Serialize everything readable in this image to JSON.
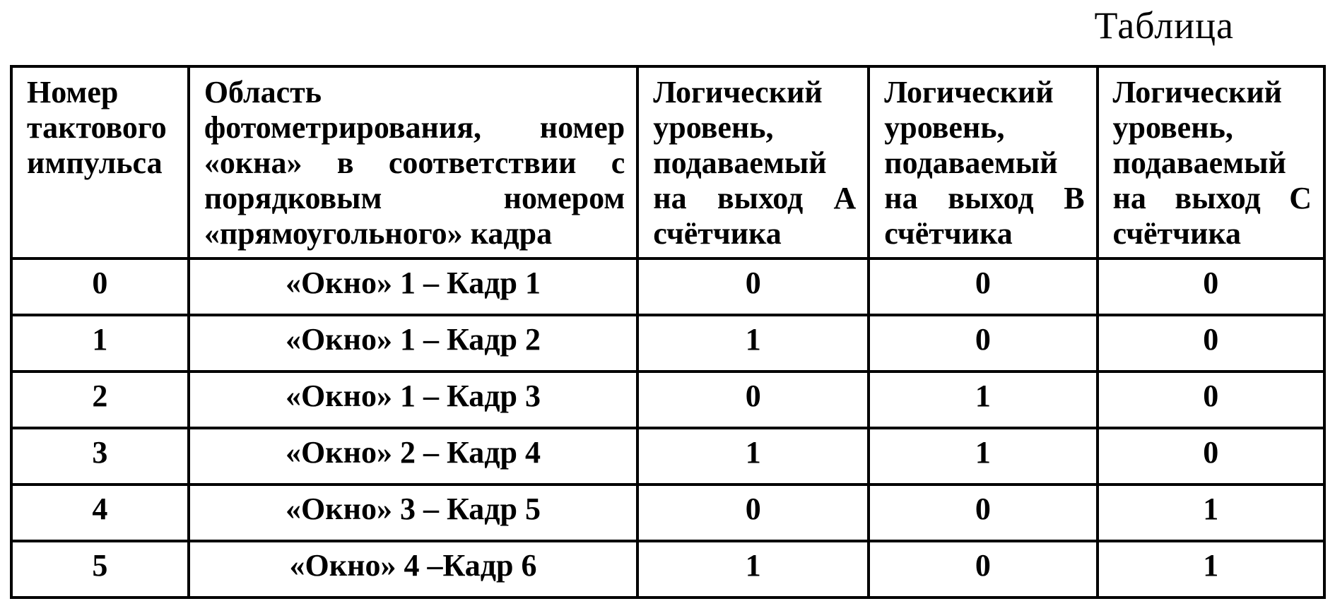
{
  "title": "Таблица",
  "colors": {
    "text": "#000000",
    "background": "#ffffff",
    "border": "#000000"
  },
  "table": {
    "headers": [
      {
        "lines": [
          "Номер",
          "тактового",
          "импульса"
        ]
      },
      {
        "lines": [
          "Область",
          "фотометрирования, номер",
          "«окна» в соответствии с",
          "порядковым номером",
          "«прямоугольного» кадра"
        ]
      },
      {
        "lines": [
          "Логический",
          "уровень,",
          "подаваемый",
          "на выход А",
          "счётчика"
        ]
      },
      {
        "lines": [
          "Логический",
          "уровень,",
          "подаваемый",
          "на выход В",
          "счётчика"
        ]
      },
      {
        "lines": [
          "Логический",
          "уровень,",
          "подаваемый",
          "на выход С",
          "счётчика"
        ]
      }
    ],
    "rows": [
      [
        "0",
        "«Окно» 1 – Кадр 1",
        "0",
        "0",
        "0"
      ],
      [
        "1",
        "«Окно» 1 – Кадр 2",
        "1",
        "0",
        "0"
      ],
      [
        "2",
        "«Окно» 1 – Кадр 3",
        "0",
        "1",
        "0"
      ],
      [
        "3",
        "«Окно» 2 – Кадр 4",
        "1",
        "1",
        "0"
      ],
      [
        "4",
        "«Окно» 3 – Кадр 5",
        "0",
        "0",
        "1"
      ],
      [
        "5",
        "«Окно» 4 –Кадр 6",
        "1",
        "0",
        "1"
      ]
    ]
  }
}
